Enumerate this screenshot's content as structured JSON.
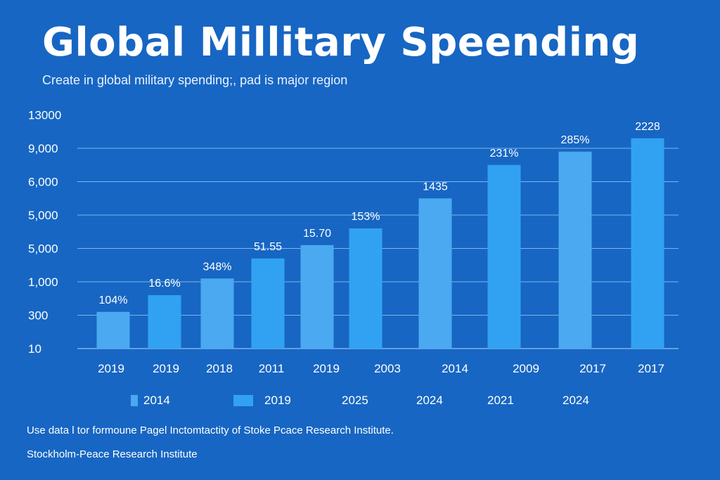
{
  "title": "Global Millitary Speending",
  "subtitle": "Create in global military spending;, pad is major region",
  "colors": {
    "background": "#1766c3",
    "bar_light": "#4aa9f0",
    "bar_bright": "#31a2f2",
    "grid": "#8cc4f5",
    "text": "#ffffff"
  },
  "chart_data": {
    "type": "bar",
    "title": "Global Millitary Speending",
    "subtitle": "Create in global military spending;, pad is major region",
    "y_tick_labels": [
      "13000",
      "9,000",
      "6,000",
      "5,000",
      "5,000",
      "1,000",
      "300",
      "10"
    ],
    "categories": [
      "2019",
      "2019",
      "2018",
      "2011",
      "2019",
      "2003",
      "2014",
      "2009",
      "2017",
      "2017"
    ],
    "values": [
      1.1,
      1.6,
      2.1,
      2.7,
      3.1,
      3.6,
      4.5,
      5.5,
      5.9,
      6.3
    ],
    "value_scale_note": "values in gridline-index units (0 = baseline, 1 per gridline)",
    "ylim": [
      0,
      8
    ],
    "data_labels": [
      "104%",
      "16.6%",
      "348%",
      "51.55",
      "15.70",
      "153%",
      "1435",
      "231%",
      "285%",
      "2228"
    ],
    "legend": [
      {
        "label": "2014",
        "swatch": "small"
      },
      {
        "label": "2019",
        "swatch": "wide"
      },
      {
        "label": "2025",
        "swatch": "none"
      },
      {
        "label": "2024",
        "swatch": "none"
      },
      {
        "label": "2021",
        "swatch": "none"
      },
      {
        "label": "2024",
        "swatch": "none"
      }
    ],
    "grid": true
  },
  "source_note": "Use data l tor formoune Pagel Inctomtactity of Stoke Pcace Research Institute.",
  "source_org": "Stockholm-Peace Research Institute"
}
